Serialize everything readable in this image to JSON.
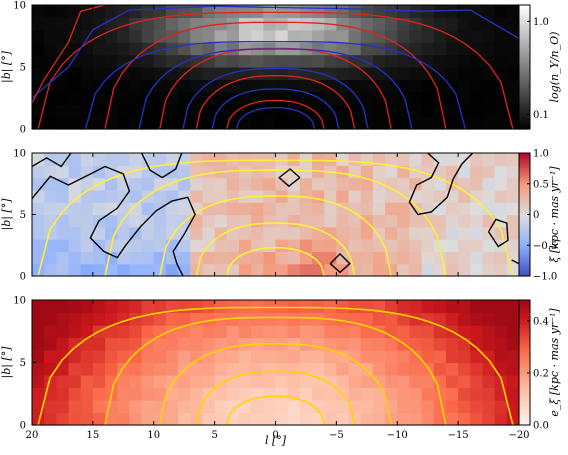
{
  "chart_data": [
    {
      "type": "heatmap",
      "panel": "top",
      "ylabel": "|b| [°]",
      "xlim": [
        20,
        -20
      ],
      "ylim": [
        0,
        10
      ],
      "yticks": [
        "0",
        "5",
        "10"
      ],
      "colorbar": {
        "label": "log(n_Y/n_O)",
        "scale": "log",
        "range": [
          0.07,
          1.5
        ],
        "ticks": [
          "0.1",
          "1.0"
        ],
        "colormap": "gray"
      },
      "contours": [
        {
          "color": "#e0231f",
          "levels": "red density contours"
        },
        {
          "color": "#2332c8",
          "levels": "blue density contours"
        }
      ]
    },
    {
      "type": "heatmap",
      "panel": "middle",
      "ylabel": "|b| [°]",
      "xlim": [
        20,
        -20
      ],
      "ylim": [
        0,
        10
      ],
      "yticks": [
        "0",
        "5",
        "10"
      ],
      "colorbar": {
        "label": "ξ [kpc · mas yr⁻¹]",
        "range": [
          -1.0,
          1.0
        ],
        "ticks": [
          "−1.0",
          "−0.5",
          "0",
          "0.5",
          "1.0"
        ],
        "colormap": "coolwarm"
      },
      "contours": [
        {
          "color": "#000000",
          "level": 0
        },
        {
          "color": "#ffee3a",
          "levels": "density contours"
        }
      ]
    },
    {
      "type": "heatmap",
      "panel": "bottom",
      "ylabel": "|b| [°]",
      "xlabel": "l [°]",
      "xlim": [
        20,
        -20
      ],
      "ylim": [
        0,
        10
      ],
      "xticks": [
        "20",
        "15",
        "10",
        "5",
        "0",
        "−5",
        "−10",
        "−15",
        "−20"
      ],
      "yticks": [
        "0",
        "5",
        "10"
      ],
      "colorbar": {
        "label": "e_ξ [kpc · mas yr⁻¹]",
        "range": [
          0.0,
          0.48
        ],
        "ticks": [
          "0.0",
          "0.2",
          "0.4"
        ],
        "colormap": "Reds"
      },
      "contours": [
        {
          "color": "#ffd400",
          "levels": "density contours"
        }
      ]
    }
  ]
}
